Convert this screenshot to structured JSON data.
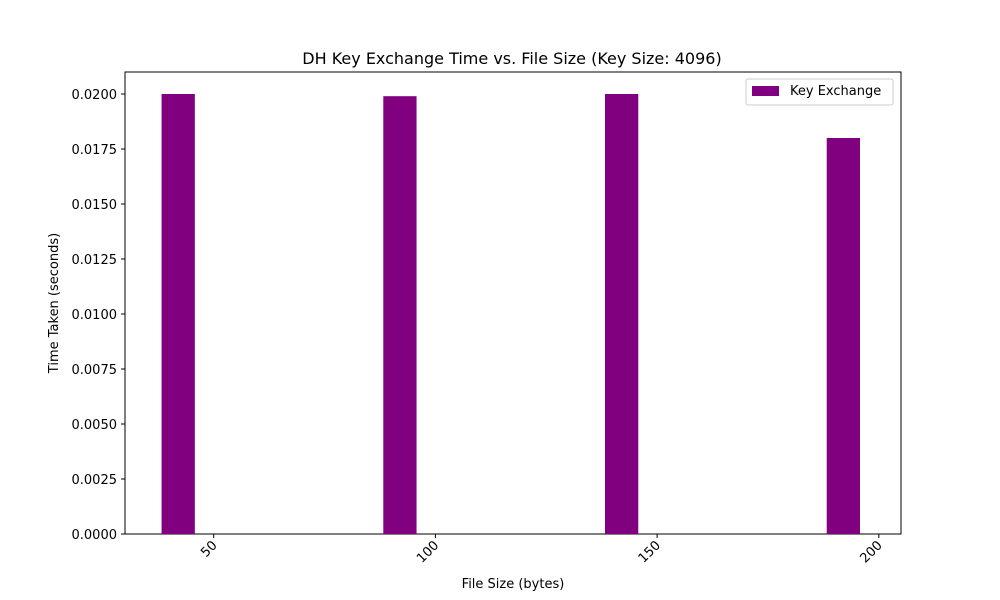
{
  "chart_data": {
    "type": "bar",
    "title": "DH Key Exchange Time vs. File Size (Key Size: 4096)",
    "xlabel": "File Size (bytes)",
    "ylabel": "Time Taken (seconds)",
    "xlim": [
      30,
      205
    ],
    "ylim": [
      0,
      0.021
    ],
    "x_ticks": [
      50,
      100,
      150,
      200
    ],
    "x_tick_labels": [
      "50",
      "100",
      "150",
      "200"
    ],
    "y_ticks": [
      0,
      0.0025,
      0.005,
      0.0075,
      0.01,
      0.0125,
      0.015,
      0.0175,
      0.02
    ],
    "y_tick_labels": [
      "0.0000",
      "0.0025",
      "0.0050",
      "0.0075",
      "0.0100",
      "0.0125",
      "0.0150",
      "0.0175",
      "0.0200"
    ],
    "bar_width": 7.5,
    "series": [
      {
        "name": "Key Exchange",
        "color": "#800080",
        "x": [
          42,
          92,
          142,
          192
        ],
        "values": [
          0.02,
          0.0199,
          0.02,
          0.018
        ]
      }
    ],
    "legend": {
      "position": "top-right",
      "entries": [
        "Key Exchange"
      ]
    },
    "grid": false
  }
}
